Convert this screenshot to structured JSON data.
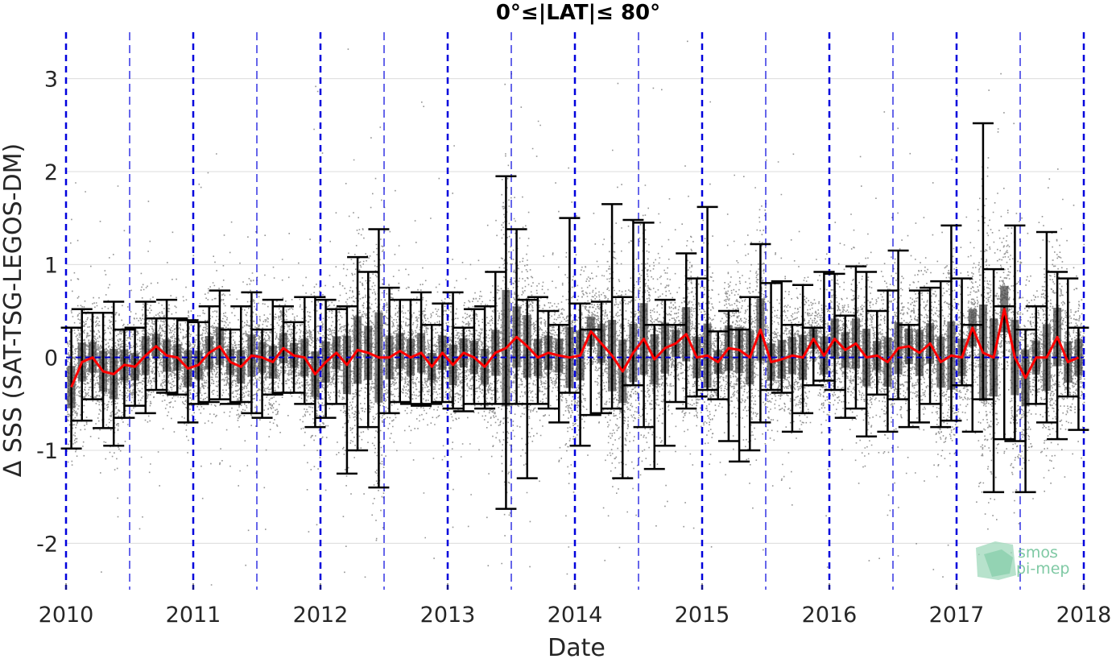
{
  "chart_data": {
    "type": "scatter",
    "title": "0°≤|LAT|≤ 80°",
    "xlabel": "Date",
    "ylabel": "Δ SSS (SAT-TSG-LEGOS-DM)",
    "xlim": [
      "2010-01-01",
      "2018-01-01"
    ],
    "ylim": [
      -2.5,
      3.5
    ],
    "x_ticks": [
      "2010",
      "2011",
      "2012",
      "2013",
      "2014",
      "2015",
      "2016",
      "2017",
      "2018"
    ],
    "y_ticks": [
      -2,
      -1,
      0,
      1,
      2,
      3
    ],
    "grid": true,
    "colors": {
      "scatter": "#808080",
      "mean_line": "#ff0000",
      "error_bars": "#000000",
      "boxes": "#404040",
      "zero_line": "#0000cc",
      "year_lines": "#0000dd",
      "grid": "#dcdcdc"
    },
    "series": [
      {
        "name": "monthly mean",
        "x": [
          "2010-01",
          "2010-02",
          "2010-03",
          "2010-04",
          "2010-05",
          "2010-06",
          "2010-07",
          "2010-08",
          "2010-09",
          "2010-10",
          "2010-11",
          "2010-12",
          "2011-01",
          "2011-02",
          "2011-03",
          "2011-04",
          "2011-05",
          "2011-06",
          "2011-07",
          "2011-08",
          "2011-09",
          "2011-10",
          "2011-11",
          "2011-12",
          "2012-01",
          "2012-02",
          "2012-03",
          "2012-04",
          "2012-05",
          "2012-06",
          "2012-07",
          "2012-08",
          "2012-09",
          "2012-10",
          "2012-11",
          "2012-12",
          "2013-01",
          "2013-02",
          "2013-03",
          "2013-04",
          "2013-05",
          "2013-06",
          "2013-07",
          "2013-08",
          "2013-09",
          "2013-10",
          "2013-11",
          "2013-12",
          "2014-01",
          "2014-02",
          "2014-03",
          "2014-04",
          "2014-05",
          "2014-06",
          "2014-07",
          "2014-08",
          "2014-09",
          "2014-10",
          "2014-11",
          "2014-12",
          "2015-01",
          "2015-02",
          "2015-03",
          "2015-04",
          "2015-05",
          "2015-06",
          "2015-07",
          "2015-08",
          "2015-09",
          "2015-10",
          "2015-11",
          "2015-12",
          "2016-01",
          "2016-02",
          "2016-03",
          "2016-04",
          "2016-05",
          "2016-06",
          "2016-07",
          "2016-08",
          "2016-09",
          "2016-10",
          "2016-11",
          "2016-12",
          "2017-01",
          "2017-02",
          "2017-03",
          "2017-04",
          "2017-05",
          "2017-06",
          "2017-07",
          "2017-08",
          "2017-09",
          "2017-10",
          "2017-11",
          "2017-12"
        ],
        "y": [
          -0.32,
          -0.05,
          0.0,
          -0.15,
          -0.18,
          -0.08,
          -0.1,
          0.02,
          0.12,
          0.02,
          0.0,
          -0.12,
          -0.08,
          0.05,
          0.12,
          -0.05,
          -0.1,
          0.02,
          0.0,
          -0.05,
          0.1,
          0.02,
          0.0,
          -0.18,
          -0.05,
          0.05,
          -0.08,
          0.08,
          0.05,
          0.0,
          0.0,
          0.07,
          0.0,
          0.05,
          -0.1,
          0.05,
          -0.08,
          0.05,
          0.0,
          -0.1,
          0.05,
          0.1,
          0.22,
          0.12,
          0.0,
          0.05,
          0.02,
          0.0,
          0.02,
          0.28,
          0.15,
          0.02,
          -0.15,
          0.05,
          0.2,
          -0.02,
          0.1,
          0.15,
          0.25,
          0.0,
          0.02,
          -0.05,
          0.1,
          0.08,
          0.0,
          0.3,
          -0.05,
          -0.02,
          0.02,
          0.0,
          0.2,
          0.02,
          0.2,
          0.08,
          0.15,
          0.0,
          0.02,
          -0.05,
          0.1,
          0.12,
          0.05,
          0.15,
          -0.05,
          0.02,
          0.0,
          0.32,
          0.05,
          0.0,
          0.52,
          0.0,
          -0.22,
          0.0,
          0.0,
          0.22,
          -0.05,
          0.0
        ]
      }
    ],
    "error_bars": {
      "lower": [
        -0.98,
        -0.68,
        -0.45,
        -0.76,
        -0.95,
        -0.65,
        -0.52,
        -0.6,
        -0.35,
        -0.38,
        -0.4,
        -0.7,
        -0.5,
        -0.48,
        -0.45,
        -0.5,
        -0.48,
        -0.6,
        -0.65,
        -0.4,
        -0.38,
        -0.38,
        -0.5,
        -0.75,
        -0.65,
        -0.5,
        -1.25,
        -1.0,
        -0.75,
        -1.4,
        -0.6,
        -0.48,
        -0.5,
        -0.52,
        -0.5,
        -0.48,
        -0.55,
        -0.58,
        -0.5,
        -0.55,
        -0.5,
        -1.63,
        -0.5,
        -1.3,
        -0.5,
        -0.55,
        -0.7,
        -0.38,
        -0.95,
        -0.62,
        -0.6,
        -0.55,
        -1.3,
        -0.3,
        -0.75,
        -1.2,
        -0.95,
        -0.48,
        -0.55,
        -0.42,
        -0.35,
        -0.45,
        -0.9,
        -1.12,
        -1.0,
        -0.7,
        -0.35,
        -0.38,
        -0.8,
        -0.6,
        -0.3,
        -0.25,
        -0.35,
        -0.65,
        -0.55,
        -0.85,
        -0.4,
        -0.8,
        -0.45,
        -0.75,
        -0.7,
        -0.5,
        -0.75,
        -0.68,
        -0.3,
        -0.8,
        -0.45,
        -1.45,
        -0.88,
        -0.9,
        -1.45,
        -0.5,
        -0.7,
        -0.88,
        -0.42,
        -0.78
      ],
      "upper": [
        0.32,
        0.52,
        0.48,
        0.48,
        0.6,
        0.3,
        0.32,
        0.6,
        0.42,
        0.62,
        0.42,
        0.4,
        0.38,
        0.55,
        0.72,
        0.3,
        0.55,
        0.7,
        0.3,
        0.62,
        0.55,
        0.38,
        0.65,
        0.65,
        0.62,
        0.52,
        0.55,
        1.08,
        0.92,
        1.38,
        0.75,
        0.62,
        0.62,
        0.7,
        0.35,
        0.58,
        0.7,
        0.32,
        0.52,
        0.55,
        0.92,
        1.95,
        1.38,
        0.62,
        0.65,
        0.5,
        0.35,
        1.5,
        0.58,
        0.3,
        0.6,
        1.65,
        0.65,
        1.48,
        1.45,
        0.35,
        0.62,
        0.35,
        1.12,
        0.85,
        1.62,
        0.28,
        0.5,
        0.3,
        0.65,
        1.22,
        0.8,
        0.82,
        0.35,
        0.78,
        0.32,
        0.92,
        0.9,
        0.45,
        0.98,
        0.92,
        0.5,
        0.72,
        1.15,
        0.35,
        0.72,
        0.75,
        0.82,
        1.42,
        0.85,
        0.35,
        2.52,
        0.95,
        0.55,
        1.42,
        0.3,
        0.55,
        1.35,
        0.92,
        0.85,
        0.32
      ]
    },
    "year_divider_lines": [
      "2010",
      "2011",
      "2012",
      "2013",
      "2014",
      "2015",
      "2016",
      "2017",
      "2018"
    ],
    "half_year_lines": [
      "2010.5",
      "2011.5",
      "2012.5",
      "2013.5",
      "2014.5",
      "2015.5",
      "2016.5",
      "2017.5"
    ],
    "watermark": {
      "line1": "smos",
      "line2": "pi-mep"
    }
  }
}
